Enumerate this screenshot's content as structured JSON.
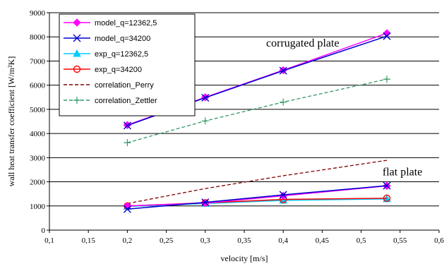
{
  "chart_data": {
    "type": "line",
    "title": "",
    "xlabel": "velocity [m/s]",
    "ylabel": "wall heat transfer coefficient [W/m²K]",
    "xlim": [
      0.1,
      0.6
    ],
    "ylim": [
      0,
      9000
    ],
    "x_ticks": [
      "0,1",
      "0,15",
      "0,2",
      "0,25",
      "0,3",
      "0,35",
      "0,4",
      "0,45",
      "0,5",
      "0,55",
      "0,6"
    ],
    "y_ticks": [
      "0",
      "1000",
      "2000",
      "3000",
      "4000",
      "5000",
      "6000",
      "7000",
      "8000",
      "9000"
    ],
    "grid": "horizontal",
    "legend_position": "top-left",
    "annotations": [
      {
        "text": "corrugated plate",
        "x": 0.425,
        "y": 7600
      },
      {
        "text": "flat plate",
        "x": 0.553,
        "y": 2270
      }
    ],
    "series": [
      {
        "name": "model_q=12362,5",
        "color": "#ff00ff",
        "marker": "diamond",
        "dash": "solid",
        "x": [
          0.2,
          0.3,
          0.4,
          0.533
        ],
        "y": [
          4350,
          5500,
          6620,
          8150
        ]
      },
      {
        "name": "model_q=34200",
        "color": "#0000cc",
        "marker": "x",
        "dash": "solid",
        "x": [
          0.2,
          0.3,
          0.4,
          0.533
        ],
        "y": [
          4330,
          5480,
          6600,
          8030
        ]
      },
      {
        "name": "exp_q=12362,5",
        "color": "#00ccff",
        "marker": "triangle",
        "dash": "solid",
        "x": [
          0.2,
          0.3,
          0.4,
          0.533
        ],
        "y": [
          980,
          1100,
          1230,
          1290
        ]
      },
      {
        "name": "exp_q=34200",
        "color": "#ff0000",
        "marker": "circle",
        "dash": "solid",
        "x": [
          0.2,
          0.3,
          0.4,
          0.533
        ],
        "y": [
          1000,
          1130,
          1270,
          1320
        ]
      },
      {
        "name": "correlation_Perry",
        "color": "#800000",
        "marker": "none",
        "dash": "dashed",
        "x": [
          0.2,
          0.3,
          0.4,
          0.533
        ],
        "y": [
          1100,
          1720,
          2250,
          2890
        ]
      },
      {
        "name": "correlation_Zettler",
        "color": "#339966",
        "marker": "plus",
        "dash": "dashed",
        "x": [
          0.2,
          0.3,
          0.4,
          0.533
        ],
        "y": [
          3620,
          4520,
          5300,
          6250
        ]
      },
      {
        "name": "",
        "color": "#ff00ff",
        "marker": "diamond",
        "dash": "solid",
        "x": [
          0.2,
          0.3,
          0.4,
          0.533
        ],
        "y": [
          1000,
          1120,
          1420,
          1830
        ]
      },
      {
        "name": "",
        "color": "#0000cc",
        "marker": "x",
        "dash": "solid",
        "x": [
          0.2,
          0.3,
          0.4,
          0.533
        ],
        "y": [
          870,
          1150,
          1460,
          1840
        ]
      }
    ]
  }
}
